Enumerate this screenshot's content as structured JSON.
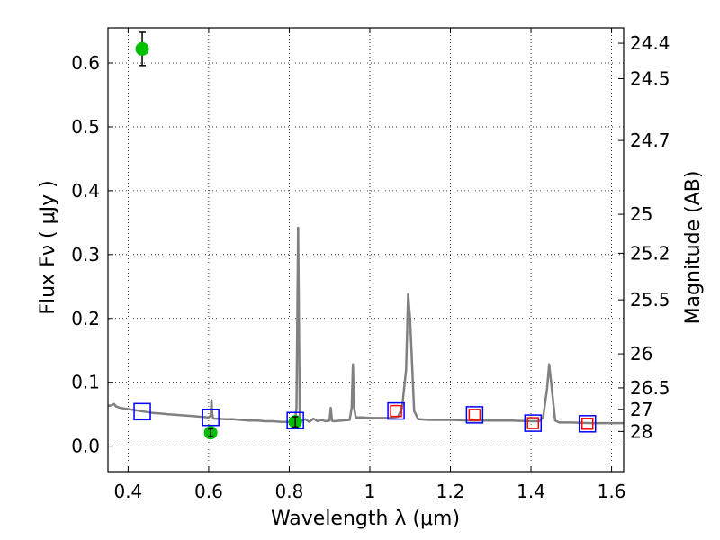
{
  "chart_data": {
    "type": "scatter",
    "xlabel": "Wavelength  λ (μm)",
    "ylabel": "Flux  Fν  ( μJy )",
    "ylabel_right": "Magnitude (AB)",
    "xlim": [
      0.35,
      1.63
    ],
    "ylim": [
      -0.04,
      0.655
    ],
    "grid": true,
    "x_ticks": [
      0.4,
      0.6,
      0.8,
      1.0,
      1.2,
      1.4,
      1.6
    ],
    "x_tick_labels": [
      "0.4",
      "0.6",
      "0.8",
      "1",
      "1.2",
      "1.4",
      "1.6"
    ],
    "y_ticks": [
      0.0,
      0.1,
      0.2,
      0.3,
      0.4,
      0.5,
      0.6
    ],
    "y_tick_labels": [
      "0.0",
      "0.1",
      "0.2",
      "0.3",
      "0.4",
      "0.5",
      "0.6"
    ],
    "mag_ticks": [
      24.4,
      24.5,
      24.7,
      25,
      25.2,
      25.5,
      26,
      26.5,
      27,
      28
    ],
    "mag_tick_labels": [
      "24.4",
      "24.5",
      "24.7",
      "25",
      "25.2",
      "25.5",
      "26",
      "26.5",
      "27",
      "28"
    ],
    "series": [
      {
        "kind": "line",
        "color": "#808080",
        "x": [
          0.35,
          0.36,
          0.365,
          0.37,
          0.38,
          0.39,
          0.4,
          0.41,
          0.42,
          0.44,
          0.46,
          0.48,
          0.5,
          0.52,
          0.54,
          0.56,
          0.58,
          0.6,
          0.605,
          0.607,
          0.609,
          0.611,
          0.613,
          0.62,
          0.64,
          0.66,
          0.68,
          0.7,
          0.72,
          0.74,
          0.76,
          0.78,
          0.8,
          0.81,
          0.815,
          0.818,
          0.82,
          0.822,
          0.824,
          0.826,
          0.83,
          0.84,
          0.85,
          0.86,
          0.87,
          0.88,
          0.89,
          0.9,
          0.903,
          0.906,
          0.91,
          0.93,
          0.95,
          0.955,
          0.958,
          0.961,
          0.965,
          0.98,
          1.0,
          1.03,
          1.05,
          1.07,
          1.08,
          1.09,
          1.095,
          1.1,
          1.11,
          1.12,
          1.15,
          1.2,
          1.25,
          1.3,
          1.35,
          1.4,
          1.42,
          1.43,
          1.44,
          1.445,
          1.45,
          1.46,
          1.47,
          1.5,
          1.55,
          1.6,
          1.63
        ],
        "values": [
          0.063,
          0.064,
          0.066,
          0.062,
          0.06,
          0.059,
          0.058,
          0.057,
          0.056,
          0.054,
          0.052,
          0.051,
          0.05,
          0.049,
          0.048,
          0.047,
          0.046,
          0.045,
          0.048,
          0.072,
          0.05,
          0.044,
          0.043,
          0.043,
          0.042,
          0.042,
          0.041,
          0.04,
          0.04,
          0.039,
          0.039,
          0.038,
          0.038,
          0.038,
          0.045,
          0.06,
          0.2,
          0.342,
          0.2,
          0.045,
          0.04,
          0.042,
          0.038,
          0.043,
          0.039,
          0.041,
          0.039,
          0.04,
          0.06,
          0.04,
          0.039,
          0.04,
          0.041,
          0.06,
          0.128,
          0.06,
          0.045,
          0.045,
          0.044,
          0.044,
          0.044,
          0.046,
          0.06,
          0.12,
          0.238,
          0.2,
          0.055,
          0.042,
          0.041,
          0.041,
          0.04,
          0.04,
          0.04,
          0.039,
          0.039,
          0.045,
          0.09,
          0.128,
          0.1,
          0.04,
          0.037,
          0.037,
          0.036,
          0.036,
          0.036
        ]
      },
      {
        "kind": "markers",
        "marker": "square",
        "color": "#0000ff",
        "x": [
          0.435,
          0.605,
          0.815,
          1.065,
          1.26,
          1.405,
          1.54
        ],
        "values": [
          0.054,
          0.045,
          0.04,
          0.055,
          0.049,
          0.036,
          0.035
        ]
      },
      {
        "kind": "markers",
        "marker": "square",
        "color": "#ff0000",
        "x": [
          1.065,
          1.26,
          1.405,
          1.54
        ],
        "values": [
          0.055,
          0.049,
          0.036,
          0.035
        ]
      },
      {
        "kind": "errorbar",
        "marker": "circle",
        "color": "#00c000",
        "x": [
          0.435,
          0.605,
          0.815
        ],
        "values": [
          0.622,
          0.021,
          0.038
        ],
        "err": [
          0.026,
          0.006,
          0.008
        ]
      }
    ]
  }
}
